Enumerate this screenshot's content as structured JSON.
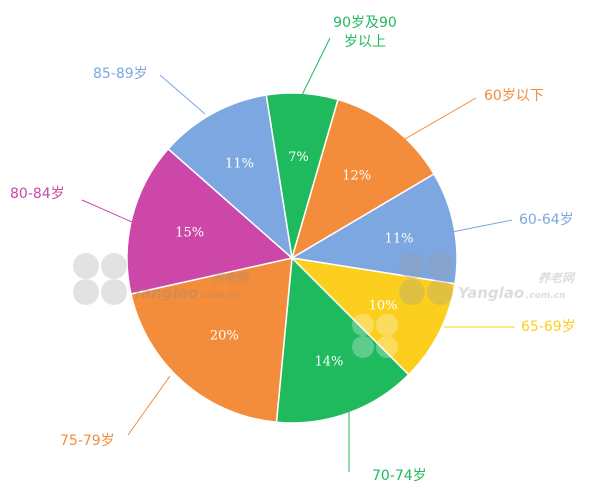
{
  "chart_data": {
    "type": "pie",
    "title": "",
    "legend": "none",
    "slices": [
      {
        "label": "90岁及90岁以上",
        "value": 7,
        "value_label": "7%",
        "color": "#20BA5E"
      },
      {
        "label": "60岁以下",
        "value": 12,
        "value_label": "12%",
        "color": "#F38D3C"
      },
      {
        "label": "60-64岁",
        "value": 11,
        "value_label": "11%",
        "color": "#7DA7E0"
      },
      {
        "label": "65-69岁",
        "value": 10,
        "value_label": "10%",
        "color": "#FCCF1F"
      },
      {
        "label": "70-74岁",
        "value": 14,
        "value_label": "14%",
        "color": "#20BA5E"
      },
      {
        "label": "75-79岁",
        "value": 20,
        "value_label": "20%",
        "color": "#F38D3C"
      },
      {
        "label": "80-84岁",
        "value": 15,
        "value_label": "15%",
        "color": "#CC47A7"
      },
      {
        "label": "85-89岁",
        "value": 11,
        "value_label": "11%",
        "color": "#7DA7E0"
      }
    ]
  },
  "watermark": {
    "brand_cn": "养老网",
    "brand_en": "Yanglao",
    "domain": ".com.cn"
  }
}
